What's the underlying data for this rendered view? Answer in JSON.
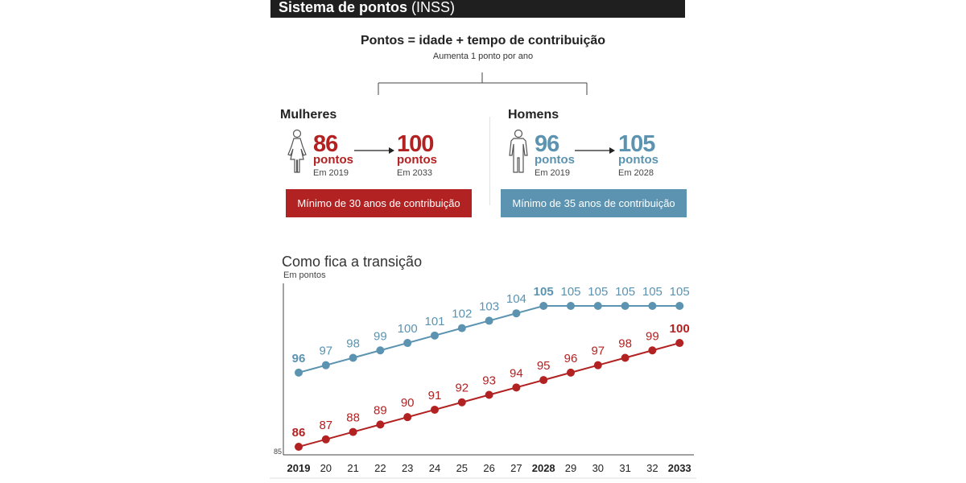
{
  "header": {
    "title_bold": "Sistema de pontos",
    "title_light": "(INSS)"
  },
  "formula": {
    "title": "Pontos = idade + tempo de contribuição",
    "subtitle": "Aumenta 1 ponto por ano"
  },
  "women": {
    "label": "Mulheres",
    "from_value": "86",
    "from_unit": "pontos",
    "from_year": "Em 2019",
    "to_value": "100",
    "to_unit": "pontos",
    "to_year": "Em 2033",
    "requirement": "Mínimo de 30 anos de contribuição"
  },
  "men": {
    "label": "Homens",
    "from_value": "96",
    "from_unit": "pontos",
    "from_year": "Em 2019",
    "to_value": "105",
    "to_unit": "pontos",
    "to_year": "Em 2028",
    "requirement": "Mínimo de 35 anos de contribuição"
  },
  "colors": {
    "women": "#b22222",
    "men": "#5b93b0",
    "header": "#1f1f1f"
  },
  "chart_data": {
    "type": "line",
    "title": "Como fica a transição",
    "ylabel": "Em pontos",
    "ymin_label": "85",
    "ylim": [
      85,
      106
    ],
    "categories": [
      "2019",
      "20",
      "21",
      "22",
      "23",
      "24",
      "25",
      "26",
      "27",
      "2028",
      "29",
      "30",
      "31",
      "32",
      "2033"
    ],
    "bold_categories": [
      "2019",
      "2028",
      "2033"
    ],
    "series": [
      {
        "name": "Homens",
        "color": "#5b93b0",
        "values": [
          96,
          97,
          98,
          99,
          100,
          101,
          102,
          103,
          104,
          105,
          105,
          105,
          105,
          105,
          105
        ],
        "bold_labels": [
          0,
          9
        ]
      },
      {
        "name": "Mulheres",
        "color": "#b22222",
        "values": [
          86,
          87,
          88,
          89,
          90,
          91,
          92,
          93,
          94,
          95,
          96,
          97,
          98,
          99,
          100
        ],
        "bold_labels": [
          0,
          14
        ]
      }
    ]
  }
}
